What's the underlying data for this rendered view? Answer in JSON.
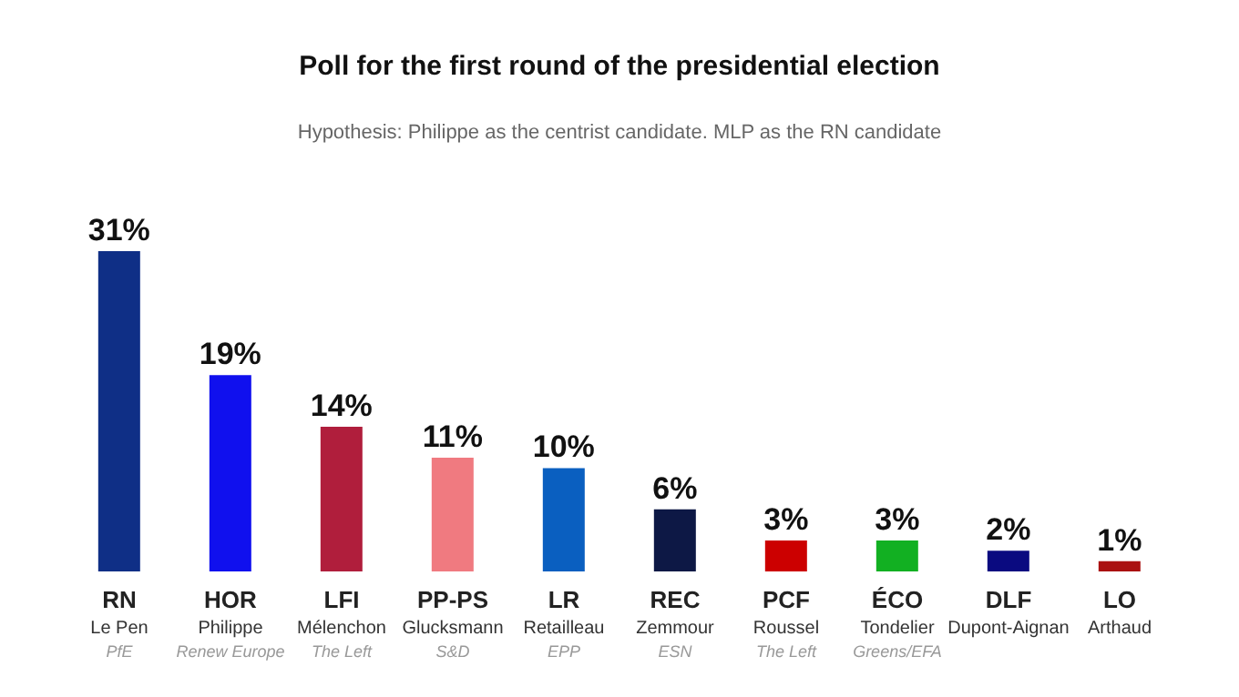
{
  "chart_data": {
    "type": "bar",
    "title": "Poll for the first round of the presidential election",
    "subtitle": "Hypothesis: Philippe as the centrist candidate. MLP as the RN candidate",
    "categories": [
      "RN\nLe Pen\nPfE",
      "HOR\nPhilippe\nRenew Europe",
      "LFI\nMélenchon\nThe Left",
      "PP-PS\nGlucksmann\nS&D",
      "LR\nRetailleau\nEPP",
      "REC\nZemmour\nESN",
      "PCF\nRoussel\nThe Left",
      "ÉCO\nTondelier\nGreens/EFA",
      "DLF\nDupont-Aignan",
      "LO\nArthaud"
    ],
    "values": [
      31,
      19,
      14,
      11,
      10,
      6,
      3,
      3,
      2,
      1
    ],
    "colors": [
      "#0f2f86",
      "#1010ee",
      "#b01e3c",
      "#f07a80",
      "#0a5fc0",
      "#0d1845",
      "#cc0000",
      "#12b022",
      "#0a0a80",
      "#aa1010"
    ],
    "value_labels": [
      "31%",
      "19%",
      "14%",
      "11%",
      "10%",
      "6%",
      "3%",
      "3%",
      "2%",
      "1%"
    ]
  }
}
